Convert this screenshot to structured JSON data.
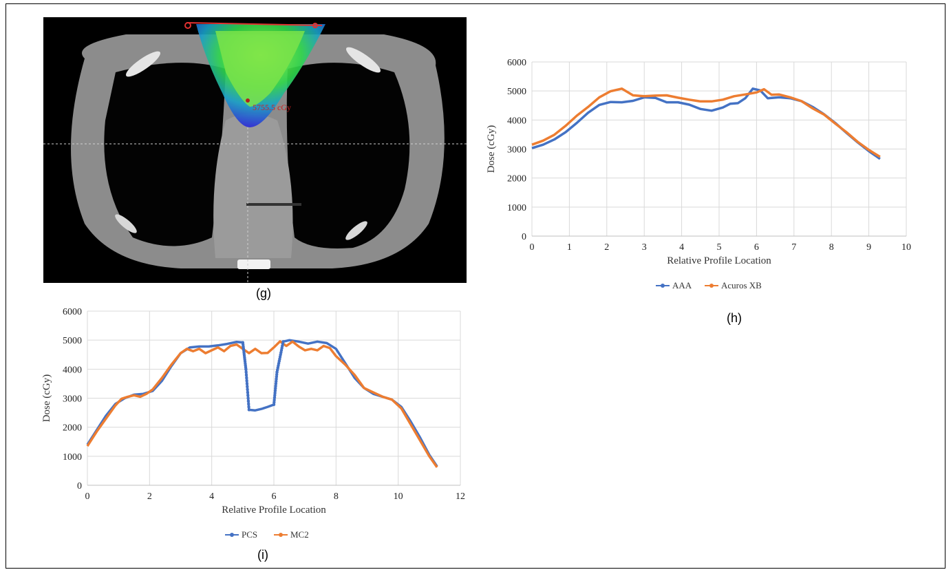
{
  "panels": {
    "g": "(g)",
    "h": "(h)",
    "i": "(i)"
  },
  "ct_image": {
    "dose_annotation": "5755.5 cGy"
  },
  "chart_data": [
    {
      "id": "h",
      "type": "line",
      "xlabel": "Relative Profile Location",
      "ylabel": "Dose (cGy)",
      "xlim": [
        0,
        10
      ],
      "ylim": [
        0,
        6000
      ],
      "xticks": [
        "0",
        "1",
        "2",
        "3",
        "4",
        "5",
        "6",
        "7",
        "8",
        "9",
        "10"
      ],
      "yticks": [
        "0",
        "1000",
        "2000",
        "3000",
        "4000",
        "5000",
        "6000"
      ],
      "grid": true,
      "legend_position": "bottom",
      "series": [
        {
          "name": "AAA",
          "color": "#4472c4",
          "x": [
            0,
            0.3,
            0.6,
            0.9,
            1.2,
            1.5,
            1.8,
            2.1,
            2.4,
            2.7,
            3.0,
            3.3,
            3.6,
            3.9,
            4.2,
            4.5,
            4.8,
            5.1,
            5.3,
            5.5,
            5.7,
            5.9,
            6.1,
            6.3,
            6.6,
            6.9,
            7.2,
            7.5,
            7.8,
            8.1,
            8.4,
            8.7,
            9.0,
            9.3
          ],
          "y": [
            3030,
            3150,
            3330,
            3580,
            3900,
            4250,
            4520,
            4620,
            4610,
            4660,
            4780,
            4760,
            4610,
            4610,
            4530,
            4380,
            4320,
            4430,
            4560,
            4580,
            4750,
            5080,
            5020,
            4750,
            4780,
            4750,
            4650,
            4450,
            4200,
            3900,
            3560,
            3230,
            2930,
            2660
          ]
        },
        {
          "name": "Acuros XB",
          "color": "#ed7d31",
          "x": [
            0,
            0.3,
            0.6,
            0.9,
            1.2,
            1.5,
            1.8,
            2.1,
            2.4,
            2.7,
            3.0,
            3.3,
            3.6,
            3.9,
            4.2,
            4.5,
            4.8,
            5.1,
            5.4,
            5.7,
            6.0,
            6.2,
            6.4,
            6.6,
            6.9,
            7.2,
            7.5,
            7.8,
            8.1,
            8.4,
            8.7,
            9.0,
            9.3
          ],
          "y": [
            3150,
            3290,
            3490,
            3800,
            4150,
            4450,
            4780,
            4990,
            5080,
            4850,
            4820,
            4840,
            4850,
            4770,
            4700,
            4640,
            4640,
            4700,
            4820,
            4880,
            4950,
            5060,
            4870,
            4880,
            4780,
            4650,
            4400,
            4190,
            3880,
            3580,
            3250,
            2970,
            2730
          ]
        }
      ]
    },
    {
      "id": "i",
      "type": "line",
      "xlabel": "Relative Profile Location",
      "ylabel": "Dose (cGy)",
      "xlim": [
        0,
        12
      ],
      "ylim": [
        0,
        6000
      ],
      "xticks": [
        "0",
        "2",
        "4",
        "6",
        "8",
        "10",
        "12"
      ],
      "yticks": [
        "0",
        "1000",
        "2000",
        "3000",
        "4000",
        "5000",
        "6000"
      ],
      "grid": true,
      "legend_position": "bottom",
      "series": [
        {
          "name": "PCS",
          "color": "#4472c4",
          "x": [
            0,
            0.3,
            0.6,
            0.9,
            1.2,
            1.5,
            1.8,
            2.1,
            2.4,
            2.7,
            3.0,
            3.3,
            3.6,
            3.9,
            4.2,
            4.5,
            4.8,
            5.0,
            5.1,
            5.2,
            5.4,
            5.6,
            5.8,
            6.0,
            6.1,
            6.3,
            6.5,
            6.8,
            7.1,
            7.4,
            7.7,
            8.0,
            8.3,
            8.6,
            8.9,
            9.2,
            9.5,
            9.8,
            10.1,
            10.4,
            10.7,
            11.0,
            11.25
          ],
          "x_dense": [],
          "y": [
            1400,
            1900,
            2400,
            2800,
            3000,
            3120,
            3150,
            3250,
            3600,
            4100,
            4550,
            4750,
            4780,
            4780,
            4820,
            4870,
            4940,
            4920,
            4000,
            2600,
            2580,
            2630,
            2700,
            2780,
            3900,
            4950,
            5000,
            4950,
            4880,
            4950,
            4900,
            4700,
            4200,
            3700,
            3350,
            3150,
            3050,
            2950,
            2700,
            2200,
            1650,
            1050,
            650
          ]
        },
        {
          "name": "MC2",
          "color": "#ed7d31",
          "x": [
            0,
            0.3,
            0.6,
            0.9,
            1.1,
            1.3,
            1.5,
            1.7,
            1.9,
            2.1,
            2.4,
            2.7,
            3.0,
            3.2,
            3.4,
            3.6,
            3.8,
            4.0,
            4.2,
            4.4,
            4.6,
            4.8,
            5.0,
            5.2,
            5.4,
            5.6,
            5.8,
            6.0,
            6.2,
            6.4,
            6.6,
            6.8,
            7.0,
            7.2,
            7.4,
            7.6,
            7.8,
            8.0,
            8.3,
            8.6,
            8.9,
            9.2,
            9.5,
            9.8,
            10.1,
            10.4,
            10.7,
            11.0,
            11.25
          ],
          "y": [
            1350,
            1850,
            2300,
            2750,
            2980,
            3050,
            3100,
            3050,
            3150,
            3300,
            3700,
            4150,
            4550,
            4700,
            4620,
            4700,
            4550,
            4650,
            4750,
            4620,
            4800,
            4850,
            4700,
            4550,
            4700,
            4550,
            4560,
            4750,
            4960,
            4800,
            4950,
            4780,
            4650,
            4700,
            4650,
            4800,
            4730,
            4450,
            4150,
            3800,
            3350,
            3200,
            3050,
            2950,
            2650,
            2100,
            1550,
            1000,
            620
          ]
        }
      ]
    }
  ]
}
